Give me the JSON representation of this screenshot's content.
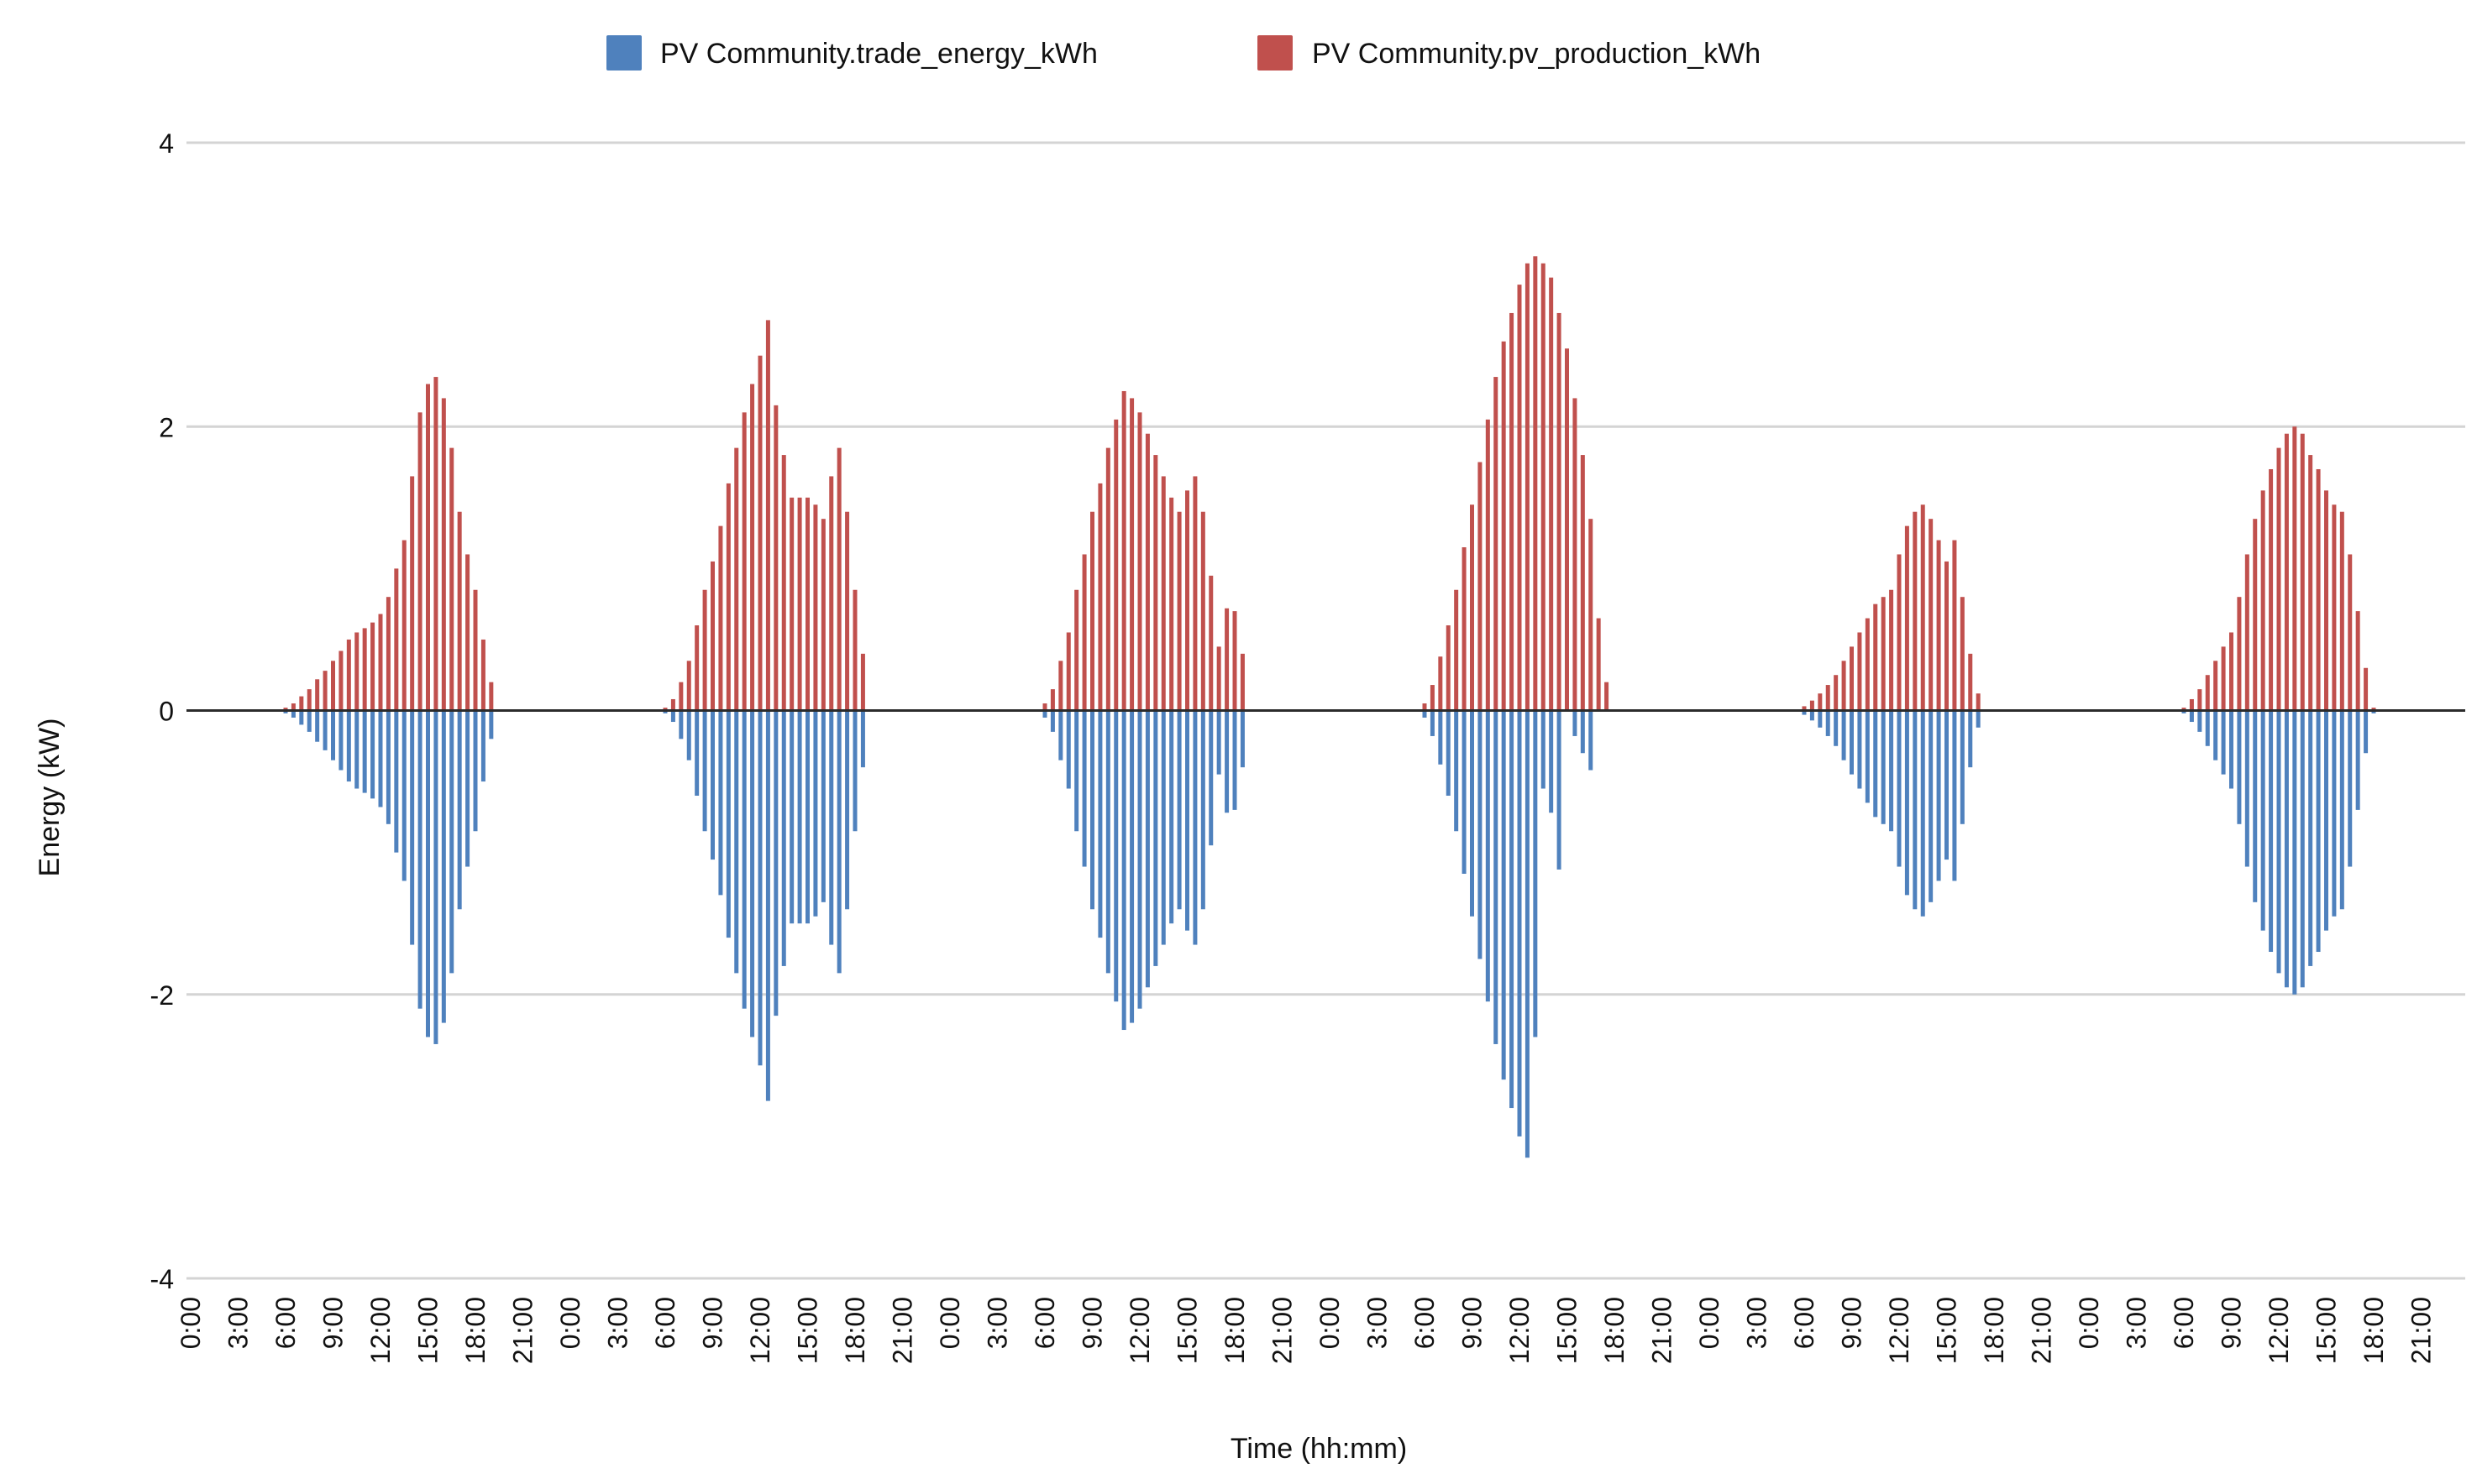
{
  "chart_data": {
    "type": "bar",
    "title": "",
    "xlabel": "Time (hh:mm)",
    "ylabel": "Energy (kW)",
    "ylim": [
      -4,
      4
    ],
    "yticks": [
      4,
      2,
      0,
      -2,
      -4
    ],
    "ytick_labels": [
      "4",
      "2",
      "0",
      "-2",
      "-4"
    ],
    "grid": true,
    "legend_position": "top-center",
    "x_step_hours": 0.5,
    "x_tick_labels": [
      "0:00",
      "3:00",
      "6:00",
      "9:00",
      "12:00",
      "15:00",
      "18:00",
      "21:00",
      "0:00",
      "3:00",
      "6:00",
      "9:00",
      "12:00",
      "15:00",
      "18:00",
      "21:00",
      "0:00",
      "3:00",
      "6:00",
      "9:00",
      "12:00",
      "15:00",
      "18:00",
      "21:00",
      "0:00",
      "3:00",
      "6:00",
      "9:00",
      "12:00",
      "15:00",
      "18:00",
      "21:00",
      "0:00",
      "3:00",
      "6:00",
      "9:00",
      "12:00",
      "15:00",
      "18:00",
      "21:00",
      "0:00",
      "3:00",
      "6:00",
      "9:00",
      "12:00",
      "15:00",
      "18:00",
      "21:00"
    ],
    "colors": {
      "trade": "#4f81bd",
      "pv": "#c0504d",
      "zero_line": "#2b2b2b",
      "grid": "#d4d4d4"
    },
    "series": [
      {
        "name": "PV Community.trade_energy_kWh",
        "color": "#4f81bd",
        "days": [
          {
            "start_hour": 6.0,
            "values": [
              -0.02,
              -0.05,
              -0.1,
              -0.15,
              -0.22,
              -0.28,
              -0.35,
              -0.42,
              -0.5,
              -0.55,
              -0.58,
              -0.62,
              -0.68,
              -0.8,
              -1.0,
              -1.2,
              -1.65,
              -2.1,
              -2.3,
              -2.35,
              -2.2,
              -1.85,
              -1.4,
              -1.1,
              -0.85,
              -0.5,
              -0.2
            ]
          },
          {
            "start_hour": 6.0,
            "values": [
              -0.02,
              -0.08,
              -0.2,
              -0.35,
              -0.6,
              -0.85,
              -1.05,
              -1.3,
              -1.6,
              -1.85,
              -2.1,
              -2.3,
              -2.5,
              -2.75,
              -2.15,
              -1.8,
              -1.5,
              -1.5,
              -1.5,
              -1.45,
              -1.35,
              -1.65,
              -1.85,
              -1.4,
              -0.85,
              -0.4
            ]
          },
          {
            "start_hour": 6.0,
            "values": [
              -0.05,
              -0.15,
              -0.35,
              -0.55,
              -0.85,
              -1.1,
              -1.4,
              -1.6,
              -1.85,
              -2.05,
              -2.25,
              -2.2,
              -2.1,
              -1.95,
              -1.8,
              -1.65,
              -1.5,
              -1.4,
              -1.55,
              -1.65,
              -1.4,
              -0.95,
              -0.45,
              -0.72,
              -0.7,
              -0.4
            ]
          },
          {
            "start_hour": 6.0,
            "values": [
              -0.05,
              -0.18,
              -0.38,
              -0.6,
              -0.85,
              -1.15,
              -1.45,
              -1.75,
              -2.05,
              -2.35,
              -2.6,
              -2.8,
              -3.0,
              -3.15,
              -2.3,
              -0.55,
              -0.72,
              -1.12,
              0.0,
              -0.18,
              -0.3,
              -0.42
            ]
          },
          {
            "start_hour": 6.0,
            "values": [
              -0.03,
              -0.07,
              -0.12,
              -0.18,
              -0.25,
              -0.35,
              -0.45,
              -0.55,
              -0.65,
              -0.75,
              -0.8,
              -0.85,
              -1.1,
              -1.3,
              -1.4,
              -1.45,
              -1.35,
              -1.2,
              -1.05,
              -1.2,
              -0.8,
              -0.4,
              -0.12
            ]
          },
          {
            "start_hour": 6.0,
            "values": [
              -0.02,
              -0.08,
              -0.15,
              -0.25,
              -0.35,
              -0.45,
              -0.55,
              -0.8,
              -1.1,
              -1.35,
              -1.55,
              -1.7,
              -1.85,
              -1.95,
              -2.0,
              -1.95,
              -1.8,
              -1.7,
              -1.55,
              -1.45,
              -1.4,
              -1.1,
              -0.7,
              -0.3,
              -0.02
            ]
          }
        ]
      },
      {
        "name": "PV Community.pv_production_kWh",
        "color": "#c0504d",
        "days": [
          {
            "start_hour": 6.0,
            "values": [
              0.02,
              0.05,
              0.1,
              0.15,
              0.22,
              0.28,
              0.35,
              0.42,
              0.5,
              0.55,
              0.58,
              0.62,
              0.68,
              0.8,
              1.0,
              1.2,
              1.65,
              2.1,
              2.3,
              2.35,
              2.2,
              1.85,
              1.4,
              1.1,
              0.85,
              0.5,
              0.2
            ]
          },
          {
            "start_hour": 6.0,
            "values": [
              0.02,
              0.08,
              0.2,
              0.35,
              0.6,
              0.85,
              1.05,
              1.3,
              1.6,
              1.85,
              2.1,
              2.3,
              2.5,
              2.75,
              2.15,
              1.8,
              1.5,
              1.5,
              1.5,
              1.45,
              1.35,
              1.65,
              1.85,
              1.4,
              0.85,
              0.4
            ]
          },
          {
            "start_hour": 6.0,
            "values": [
              0.05,
              0.15,
              0.35,
              0.55,
              0.85,
              1.1,
              1.4,
              1.6,
              1.85,
              2.05,
              2.25,
              2.2,
              2.1,
              1.95,
              1.8,
              1.65,
              1.5,
              1.4,
              1.55,
              1.65,
              1.4,
              0.95,
              0.45,
              0.72,
              0.7,
              0.4
            ]
          },
          {
            "start_hour": 6.0,
            "values": [
              0.05,
              0.18,
              0.38,
              0.6,
              0.85,
              1.15,
              1.45,
              1.75,
              2.05,
              2.35,
              2.6,
              2.8,
              3.0,
              3.15,
              3.2,
              3.15,
              3.05,
              2.8,
              2.55,
              2.2,
              1.8,
              1.35,
              0.65,
              0.2
            ]
          },
          {
            "start_hour": 6.0,
            "values": [
              0.03,
              0.07,
              0.12,
              0.18,
              0.25,
              0.35,
              0.45,
              0.55,
              0.65,
              0.75,
              0.8,
              0.85,
              1.1,
              1.3,
              1.4,
              1.45,
              1.35,
              1.2,
              1.05,
              1.2,
              0.8,
              0.4,
              0.12
            ]
          },
          {
            "start_hour": 6.0,
            "values": [
              0.02,
              0.08,
              0.15,
              0.25,
              0.35,
              0.45,
              0.55,
              0.8,
              1.1,
              1.35,
              1.55,
              1.7,
              1.85,
              1.95,
              2.0,
              1.95,
              1.8,
              1.7,
              1.55,
              1.45,
              1.4,
              1.1,
              0.7,
              0.3,
              0.02
            ]
          }
        ]
      }
    ]
  }
}
